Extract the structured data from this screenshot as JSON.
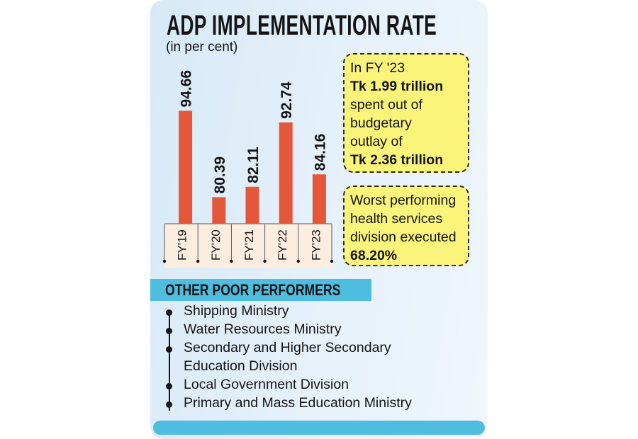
{
  "chart_data": {
    "type": "bar",
    "title": "ADP IMPLEMENTATION RATE",
    "subtitle": "(in per cent)",
    "categories": [
      "FY '19",
      "FY '20",
      "FY '21",
      "FY '22",
      "FY '23"
    ],
    "values": [
      94.66,
      80.39,
      82.11,
      92.74,
      84.16
    ],
    "data_labels": [
      "94.66",
      "80.39",
      "82.11",
      "92.74",
      "84.16"
    ],
    "bar_color": "#e5573b",
    "ylim": [
      76,
      100
    ],
    "grid": false
  },
  "callouts": {
    "fy23": {
      "line1": "In FY '23",
      "line2": "Tk 1.99 trillion",
      "line3": "spent out of",
      "line4": "budgetary",
      "line5": "outlay of",
      "line6": "Tk 2.36 trillion"
    },
    "worst": {
      "line1": "Worst performing",
      "line2": "health services",
      "line3": "division executed",
      "line4": "68.20%"
    },
    "color": "#fbf47a"
  },
  "poor_performers": {
    "heading": "OTHER POOR PERFORMERS",
    "items": [
      "Shipping Ministry",
      "Water Resources Ministry",
      "Secondary and Higher Secondary",
      "Education Division",
      "Local Government Division",
      "Primary and Mass Education Ministry"
    ],
    "accent": "#4fbde0"
  }
}
